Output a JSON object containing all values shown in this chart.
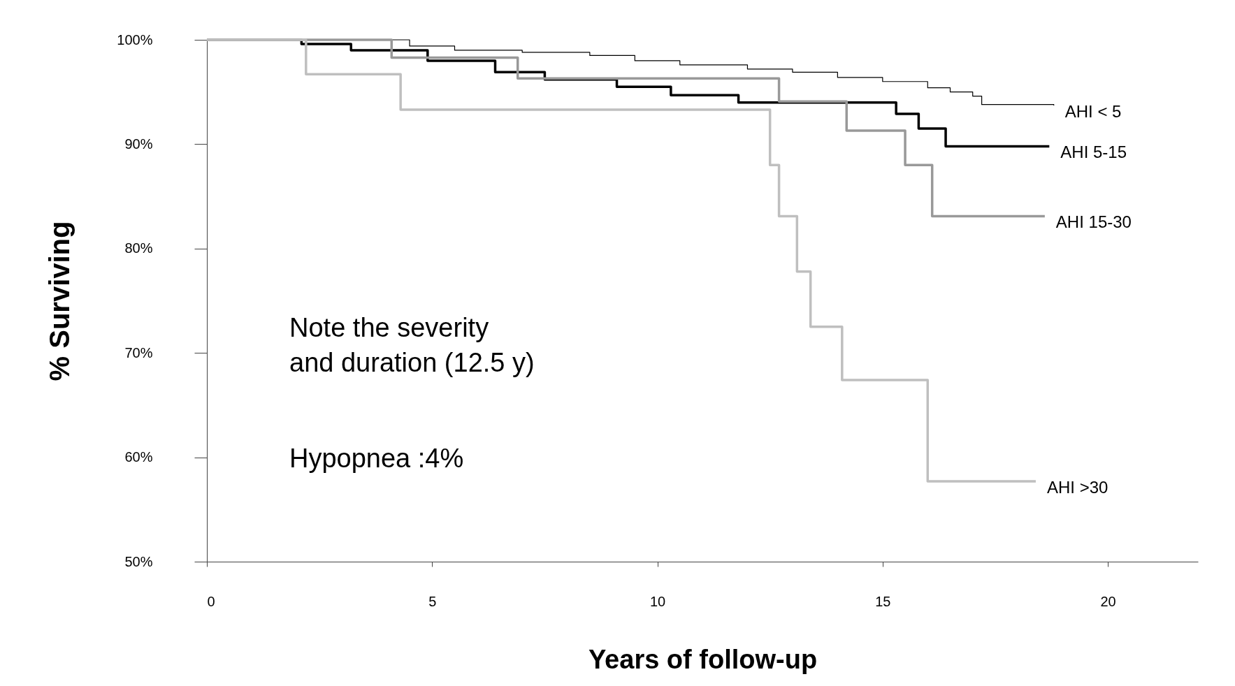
{
  "chart_data": {
    "type": "step",
    "xlabel": "Years of follow-up",
    "ylabel": "% Surviving",
    "xlim": [
      0,
      22
    ],
    "xticks": [
      0,
      5,
      10,
      15,
      20
    ],
    "ylim": [
      50,
      100
    ],
    "yticks": [
      {
        "value": 50,
        "label": "50%"
      },
      {
        "value": 60,
        "label": "60%"
      },
      {
        "value": 70,
        "label": "70%"
      },
      {
        "value": 80,
        "label": "80%"
      },
      {
        "value": 90,
        "label": "90%"
      },
      {
        "value": 100,
        "label": "100%"
      }
    ],
    "series": [
      {
        "name": "AHI < 5",
        "color": "#000000",
        "x": [
          0,
          4.5,
          5.5,
          7.0,
          8.5,
          9.5,
          10.5,
          12,
          13,
          14,
          15,
          16,
          16.5,
          17,
          17.2,
          18.8
        ],
        "values": [
          100,
          99.4,
          99.0,
          98.8,
          98.5,
          98.0,
          97.6,
          97.2,
          96.9,
          96.4,
          96.0,
          95.4,
          95.0,
          94.6,
          93.8,
          93.7
        ]
      },
      {
        "name": "AHI 5-15",
        "color": "#000000",
        "x": [
          0,
          2.1,
          3.2,
          4.9,
          6.4,
          7.5,
          9.1,
          10.3,
          11.8,
          15.3,
          15.8,
          16.4,
          18.7
        ],
        "values": [
          100,
          99.6,
          99.0,
          98.0,
          96.9,
          96.2,
          95.5,
          94.7,
          94.0,
          92.9,
          91.5,
          89.8,
          89.8
        ]
      },
      {
        "name": "AHI 15-30",
        "color": "#999999",
        "x": [
          0,
          4.1,
          6.9,
          12.7,
          14.2,
          15.5,
          16.1,
          18.6
        ],
        "values": [
          100,
          98.3,
          96.3,
          94.1,
          91.3,
          88.0,
          83.1,
          83.1
        ]
      },
      {
        "name": "AHI   >30",
        "color": "#bfbfbf",
        "x": [
          0,
          2.2,
          4.3,
          12.5,
          12.7,
          13.1,
          13.4,
          14.1,
          16.0,
          18.4
        ],
        "values": [
          100,
          96.7,
          93.3,
          88.0,
          83.1,
          77.8,
          72.5,
          67.4,
          57.7,
          57.7
        ]
      }
    ],
    "annotations": [
      "Note the severity\n and duration (12.5 y)",
      "Hypopnea :4%"
    ]
  }
}
